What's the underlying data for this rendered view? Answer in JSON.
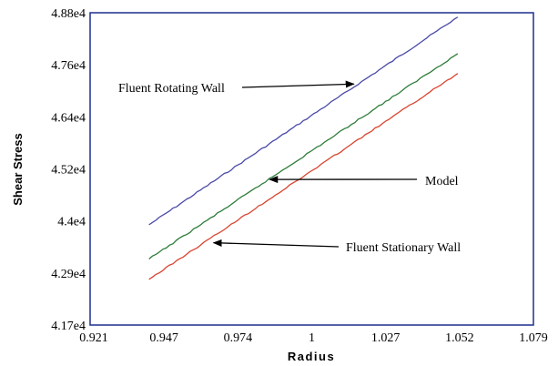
{
  "chart_data": {
    "type": "line",
    "title": "",
    "xlabel": "Radius",
    "ylabel": "Shear Stress",
    "xlim": [
      0.921,
      1.079
    ],
    "ylim": [
      41700,
      48800
    ],
    "x_ticks": [
      "0.921",
      "0.947",
      "0.974",
      "1",
      "1.027",
      "1.052",
      "1.079"
    ],
    "y_ticks": [
      "4.17e4",
      "4.29e4",
      "4.4e4",
      "4.52e4",
      "4.64e4",
      "4.76e4",
      "4.88e4"
    ],
    "grid": false,
    "series": [
      {
        "name": "Fluent Rotating Wall",
        "color": "#4a4aa8",
        "x": [
          0.942,
          1.052
        ],
        "y": [
          43980,
          48700
        ]
      },
      {
        "name": "Model",
        "color": "#2e7d3a",
        "x": [
          0.942,
          1.052
        ],
        "y": [
          43200,
          47870
        ]
      },
      {
        "name": "Fluent Stationary Wall",
        "color": "#d9442e",
        "x": [
          0.942,
          1.052
        ],
        "y": [
          42740,
          47420
        ]
      }
    ],
    "annotations": [
      {
        "text": "Fluent Rotating Wall",
        "x": 1.015,
        "y": 47180
      },
      {
        "text": "Model",
        "x": 0.985,
        "y": 45010
      },
      {
        "text": "Fluent Stationary Wall",
        "x": 0.965,
        "y": 43570
      }
    ]
  }
}
